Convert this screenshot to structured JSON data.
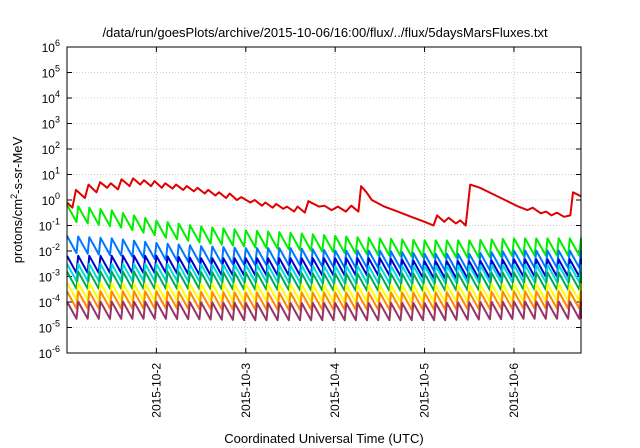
{
  "chart_data": {
    "type": "line",
    "title": "/data/run/goesPlots/archive/2015-10-06/16:00/flux/../flux/5daysMarsFluxes.txt",
    "xlabel": "Coordinated Universal Time (UTC)",
    "ylabel": "protons/cm²-s-sr-MeV",
    "ylabel_parts": {
      "pre": "protons/cm",
      "sup": "2",
      "post": "-s-sr-MeV"
    },
    "x_range_days": [
      0.0,
      5.75
    ],
    "x_ticks": [
      {
        "label": "2015-10-2",
        "day": 1.0
      },
      {
        "label": "2015-10-3",
        "day": 2.0
      },
      {
        "label": "2015-10-4",
        "day": 3.0
      },
      {
        "label": "2015-10-5",
        "day": 4.0
      },
      {
        "label": "2015-10-6",
        "day": 5.0
      }
    ],
    "y_scale": "log",
    "ylim": [
      1e-06,
      1000000.0
    ],
    "y_ticks": [
      {
        "base": "10",
        "exp": "-6"
      },
      {
        "base": "10",
        "exp": "-5"
      },
      {
        "base": "10",
        "exp": "-4"
      },
      {
        "base": "10",
        "exp": "-3"
      },
      {
        "base": "10",
        "exp": "-2"
      },
      {
        "base": "10",
        "exp": "-1"
      },
      {
        "base": "10",
        "exp": "0"
      },
      {
        "base": "10",
        "exp": "1"
      },
      {
        "base": "10",
        "exp": "2"
      },
      {
        "base": "10",
        "exp": "3"
      },
      {
        "base": "10",
        "exp": "4"
      },
      {
        "base": "10",
        "exp": "5"
      },
      {
        "base": "10",
        "exp": "6"
      }
    ],
    "grid": true,
    "legend": "none",
    "series": [
      {
        "color": "#e00000",
        "values": [
          [
            0.0,
            0.8
          ],
          [
            0.06,
            0.5
          ],
          [
            0.1,
            2.5
          ],
          [
            0.2,
            1.2
          ],
          [
            0.24,
            4.0
          ],
          [
            0.33,
            2.0
          ],
          [
            0.37,
            5.0
          ],
          [
            0.45,
            3.0
          ],
          [
            0.49,
            4.5
          ],
          [
            0.57,
            2.6
          ],
          [
            0.61,
            6.5
          ],
          [
            0.7,
            3.5
          ],
          [
            0.74,
            7.0
          ],
          [
            0.82,
            4.0
          ],
          [
            0.86,
            6.0
          ],
          [
            0.94,
            3.5
          ],
          [
            0.98,
            5.5
          ],
          [
            1.06,
            3.0
          ],
          [
            1.1,
            4.5
          ],
          [
            1.18,
            2.8
          ],
          [
            1.22,
            4.0
          ],
          [
            1.3,
            2.5
          ],
          [
            1.34,
            3.5
          ],
          [
            1.42,
            2.2
          ],
          [
            1.46,
            3.0
          ],
          [
            1.54,
            1.8
          ],
          [
            1.58,
            2.5
          ],
          [
            1.66,
            1.5
          ],
          [
            1.7,
            2.0
          ],
          [
            1.78,
            1.2
          ],
          [
            1.82,
            1.8
          ],
          [
            1.9,
            1.0
          ],
          [
            1.95,
            1.3
          ],
          [
            2.05,
            0.8
          ],
          [
            2.1,
            1.0
          ],
          [
            2.18,
            0.6
          ],
          [
            2.22,
            0.8
          ],
          [
            2.3,
            0.5
          ],
          [
            2.34,
            0.7
          ],
          [
            2.42,
            0.45
          ],
          [
            2.46,
            0.55
          ],
          [
            2.54,
            0.35
          ],
          [
            2.58,
            0.55
          ],
          [
            2.66,
            0.32
          ],
          [
            2.7,
            0.9
          ],
          [
            2.82,
            0.55
          ],
          [
            2.88,
            0.6
          ],
          [
            2.96,
            0.4
          ],
          [
            3.03,
            0.55
          ],
          [
            3.12,
            0.35
          ],
          [
            3.18,
            0.6
          ],
          [
            3.26,
            0.35
          ],
          [
            3.29,
            3.5
          ],
          [
            3.35,
            2.0
          ],
          [
            3.41,
            1.0
          ],
          [
            3.55,
            0.55
          ],
          [
            3.7,
            0.35
          ],
          [
            3.85,
            0.22
          ],
          [
            4.0,
            0.14
          ],
          [
            4.1,
            0.1
          ],
          [
            4.14,
            0.25
          ],
          [
            4.22,
            0.14
          ],
          [
            4.27,
            0.2
          ],
          [
            4.35,
            0.12
          ],
          [
            4.4,
            0.16
          ],
          [
            4.46,
            0.1
          ],
          [
            4.51,
            4.0
          ],
          [
            4.62,
            3.0
          ],
          [
            4.75,
            1.8
          ],
          [
            4.9,
            1.0
          ],
          [
            5.05,
            0.55
          ],
          [
            5.15,
            0.4
          ],
          [
            5.21,
            0.5
          ],
          [
            5.3,
            0.3
          ],
          [
            5.36,
            0.35
          ],
          [
            5.42,
            0.25
          ],
          [
            5.48,
            0.32
          ],
          [
            5.56,
            0.22
          ],
          [
            5.63,
            0.25
          ],
          [
            5.66,
            2.0
          ],
          [
            5.75,
            1.4
          ]
        ]
      },
      {
        "color": "#00ee00",
        "cycle": 0.125,
        "values": [
          [
            0.0,
            0.25
          ],
          [
            0.5,
            0.15
          ],
          [
            1.0,
            0.06
          ],
          [
            1.5,
            0.035
          ],
          [
            2.0,
            0.025
          ],
          [
            2.5,
            0.02
          ],
          [
            3.0,
            0.015
          ],
          [
            3.5,
            0.012
          ],
          [
            4.0,
            0.01
          ],
          [
            4.5,
            0.01
          ],
          [
            5.0,
            0.012
          ],
          [
            5.75,
            0.012
          ]
        ]
      },
      {
        "color": "#0077ff",
        "cycle": 0.125,
        "values": [
          [
            0.0,
            0.015
          ],
          [
            0.5,
            0.012
          ],
          [
            1.0,
            0.008
          ],
          [
            1.5,
            0.006
          ],
          [
            2.0,
            0.005
          ],
          [
            2.5,
            0.005
          ],
          [
            3.0,
            0.004
          ],
          [
            3.5,
            0.004
          ],
          [
            4.0,
            0.003
          ],
          [
            4.5,
            0.003
          ],
          [
            5.0,
            0.004
          ],
          [
            5.75,
            0.004
          ]
        ]
      },
      {
        "color": "#0000cc",
        "cycle": 0.125,
        "values": [
          [
            0.0,
            0.0025
          ],
          [
            0.5,
            0.0025
          ],
          [
            1.0,
            0.0025
          ],
          [
            1.5,
            0.002
          ],
          [
            2.0,
            0.002
          ],
          [
            2.5,
            0.002
          ],
          [
            3.0,
            0.002
          ],
          [
            3.5,
            0.002
          ],
          [
            4.0,
            0.0015
          ],
          [
            4.5,
            0.0015
          ],
          [
            5.0,
            0.0018
          ],
          [
            5.75,
            0.0018
          ]
        ]
      },
      {
        "color": "#00dddd",
        "cycle": 0.125,
        "values": [
          [
            0.0,
            0.0012
          ],
          [
            1.0,
            0.0012
          ],
          [
            2.0,
            0.0011
          ],
          [
            3.0,
            0.001
          ],
          [
            4.0,
            0.001
          ],
          [
            5.0,
            0.0011
          ],
          [
            5.75,
            0.0011
          ]
        ]
      },
      {
        "color": "#00aa55",
        "cycle": 0.125,
        "values": [
          [
            0.0,
            0.0006
          ],
          [
            1.0,
            0.0006
          ],
          [
            2.0,
            0.00055
          ],
          [
            3.0,
            0.0005
          ],
          [
            4.0,
            0.0005
          ],
          [
            5.0,
            0.00055
          ],
          [
            5.75,
            0.00055
          ]
        ]
      },
      {
        "color": "#ffff00",
        "cycle": 0.125,
        "values": [
          [
            0.0,
            0.00022
          ],
          [
            1.0,
            0.0002
          ],
          [
            2.0,
            0.0002
          ],
          [
            3.0,
            0.00018
          ],
          [
            4.0,
            0.00018
          ],
          [
            5.0,
            0.0002
          ],
          [
            5.75,
            0.0002
          ]
        ]
      },
      {
        "color": "#ff8800",
        "cycle": 0.125,
        "values": [
          [
            0.0,
            0.0001
          ],
          [
            1.0,
            0.0001
          ],
          [
            2.0,
            9e-05
          ],
          [
            3.0,
            9e-05
          ],
          [
            4.0,
            9e-05
          ],
          [
            5.0,
            0.0001
          ],
          [
            5.75,
            0.0001
          ]
        ]
      },
      {
        "color": "#993366",
        "cycle": 0.125,
        "values": [
          [
            0.0,
            4e-05
          ],
          [
            1.0,
            4e-05
          ],
          [
            2.0,
            3.5e-05
          ],
          [
            3.0,
            3.5e-05
          ],
          [
            4.0,
            3.5e-05
          ],
          [
            5.0,
            4e-05
          ],
          [
            5.75,
            4e-05
          ]
        ]
      }
    ]
  }
}
